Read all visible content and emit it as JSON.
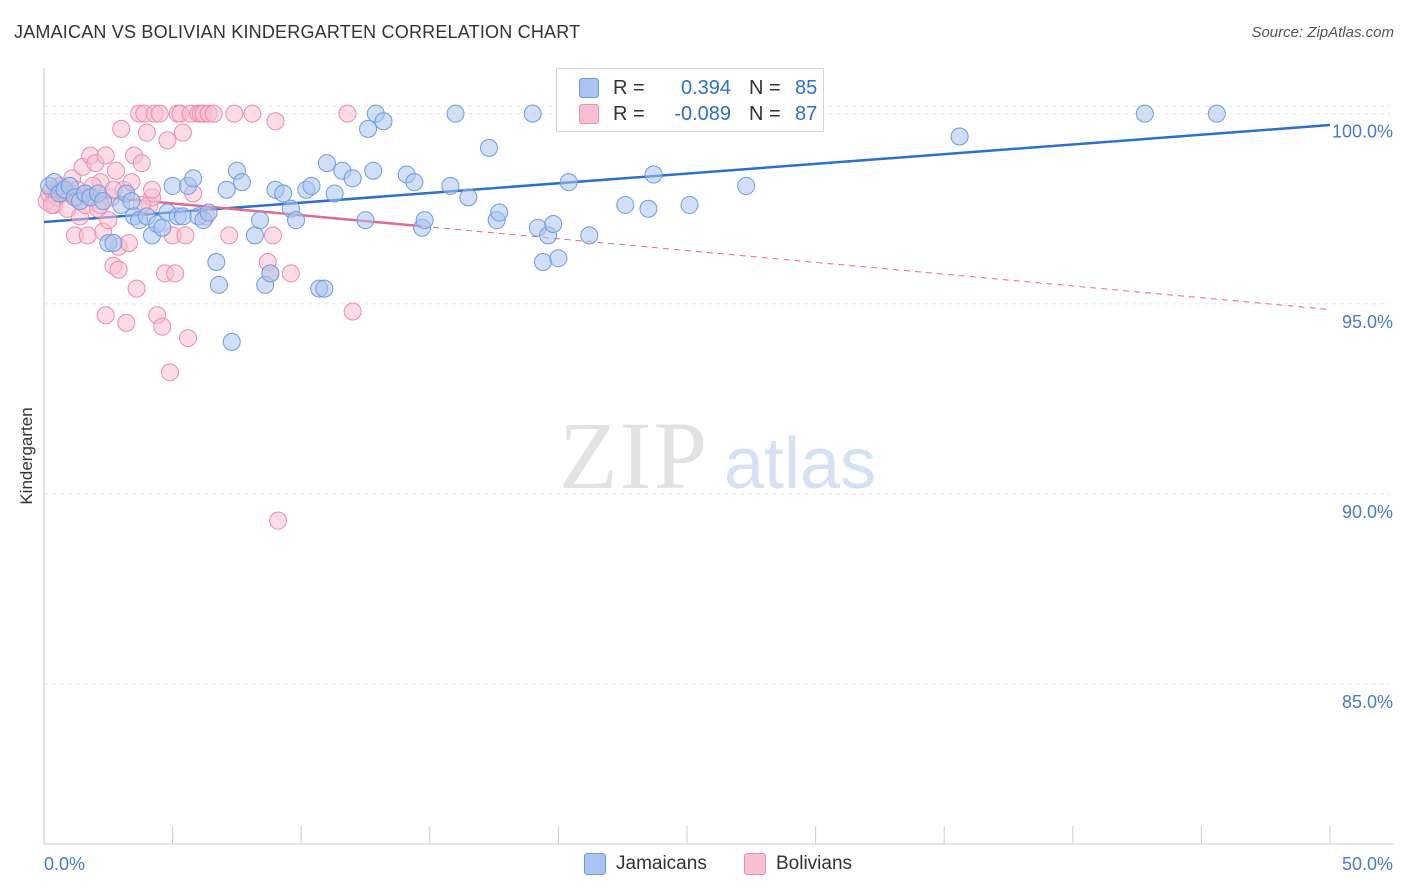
{
  "title": "JAMAICAN VS BOLIVIAN KINDERGARTEN CORRELATION CHART",
  "source": "Source: ZipAtlas.com",
  "watermark": {
    "zip": "ZIP",
    "atlas": "atlas"
  },
  "legend": {
    "rows": [
      {
        "r_label": "R =",
        "r_value": "0.394",
        "n_label": "N =",
        "n_value": "85",
        "color": "#a9c4ee",
        "border": "#6f9be0"
      },
      {
        "r_label": "R =",
        "r_value": "-0.089",
        "n_label": "N =",
        "n_value": "87",
        "color": "#f7bfd1",
        "border": "#eb8dab"
      }
    ],
    "series_names": [
      "Jamaicans",
      "Bolivians"
    ]
  },
  "chart_data": {
    "type": "scatter",
    "title": "JAMAICAN VS BOLIVIAN KINDERGARTEN CORRELATION CHART",
    "xlabel": "",
    "ylabel": "Kindergarten",
    "xlim": [
      0,
      50
    ],
    "ylim": [
      80.8,
      101.2
    ],
    "x_tick_labels": [
      "0.0%",
      "50.0%"
    ],
    "y_ticks": [
      85,
      90,
      95,
      100
    ],
    "y_tick_labels": [
      "85.0%",
      "90.0%",
      "95.0%",
      "100.0%"
    ],
    "grid": true,
    "series": [
      {
        "name": "Jamaicans",
        "color": "#6f9be0",
        "fill": "#a9c4ee",
        "trend": {
          "x0": 0,
          "y0": 97.15,
          "x1": 50,
          "y1": 99.7,
          "style": "solid",
          "color": "#2c6fce"
        },
        "points": [
          [
            0.2,
            98.1
          ],
          [
            0.4,
            98.2
          ],
          [
            0.6,
            97.9
          ],
          [
            0.8,
            98.0
          ],
          [
            1.0,
            98.1
          ],
          [
            1.2,
            97.8
          ],
          [
            1.4,
            97.7
          ],
          [
            1.6,
            97.9
          ],
          [
            1.8,
            97.8
          ],
          [
            2.1,
            97.9
          ],
          [
            2.3,
            97.7
          ],
          [
            2.5,
            96.6
          ],
          [
            2.7,
            96.6
          ],
          [
            3.0,
            97.6
          ],
          [
            3.2,
            97.9
          ],
          [
            3.4,
            97.7
          ],
          [
            3.5,
            97.3
          ],
          [
            3.7,
            97.2
          ],
          [
            4.0,
            97.3
          ],
          [
            4.2,
            96.8
          ],
          [
            4.4,
            97.1
          ],
          [
            4.6,
            97.0
          ],
          [
            4.8,
            97.4
          ],
          [
            5.0,
            98.1
          ],
          [
            5.2,
            97.3
          ],
          [
            5.4,
            97.3
          ],
          [
            5.6,
            98.1
          ],
          [
            5.8,
            98.3
          ],
          [
            6.0,
            97.3
          ],
          [
            6.2,
            97.2
          ],
          [
            6.4,
            97.4
          ],
          [
            6.7,
            96.1
          ],
          [
            6.8,
            95.5
          ],
          [
            7.1,
            98.0
          ],
          [
            7.3,
            94.0
          ],
          [
            7.5,
            98.5
          ],
          [
            7.7,
            98.2
          ],
          [
            8.2,
            96.8
          ],
          [
            8.4,
            97.2
          ],
          [
            8.6,
            95.5
          ],
          [
            8.8,
            95.8
          ],
          [
            9.0,
            98.0
          ],
          [
            9.3,
            97.9
          ],
          [
            9.6,
            97.5
          ],
          [
            9.8,
            97.2
          ],
          [
            10.2,
            98.0
          ],
          [
            10.4,
            98.1
          ],
          [
            10.7,
            95.4
          ],
          [
            10.9,
            95.4
          ],
          [
            11.0,
            98.7
          ],
          [
            11.3,
            97.9
          ],
          [
            11.6,
            98.5
          ],
          [
            12.0,
            98.3
          ],
          [
            12.5,
            97.2
          ],
          [
            12.6,
            99.6
          ],
          [
            12.8,
            98.5
          ],
          [
            12.9,
            100.0
          ],
          [
            13.2,
            99.8
          ],
          [
            14.1,
            98.4
          ],
          [
            14.4,
            98.2
          ],
          [
            14.7,
            97.0
          ],
          [
            14.8,
            97.2
          ],
          [
            15.8,
            98.1
          ],
          [
            16.0,
            100.0
          ],
          [
            16.5,
            97.8
          ],
          [
            17.3,
            99.1
          ],
          [
            17.6,
            97.2
          ],
          [
            17.7,
            97.4
          ],
          [
            19.0,
            100.0
          ],
          [
            19.2,
            97.0
          ],
          [
            19.4,
            96.1
          ],
          [
            19.6,
            96.8
          ],
          [
            19.8,
            97.1
          ],
          [
            20.0,
            96.2
          ],
          [
            20.4,
            98.2
          ],
          [
            21.2,
            96.8
          ],
          [
            22.6,
            97.6
          ],
          [
            23.5,
            97.5
          ],
          [
            23.7,
            98.4
          ],
          [
            25.1,
            97.6
          ],
          [
            26.9,
            100.0
          ],
          [
            27.3,
            98.1
          ],
          [
            35.6,
            99.4
          ],
          [
            42.8,
            100.0
          ],
          [
            45.6,
            100.0
          ]
        ]
      },
      {
        "name": "Bolivians",
        "color": "#eb8dab",
        "fill": "#f7bfd1",
        "trend": {
          "x0": 0,
          "y0": 97.95,
          "x1": 50,
          "y1": 94.85,
          "style": "solid-then-dashed",
          "solid_until_x": 14.7,
          "color": "#e3698f"
        },
        "points": [
          [
            0.1,
            97.7
          ],
          [
            0.2,
            97.9
          ],
          [
            0.3,
            98.0
          ],
          [
            0.4,
            97.6
          ],
          [
            0.5,
            97.8
          ],
          [
            0.6,
            98.1
          ],
          [
            0.7,
            98.0
          ],
          [
            0.8,
            97.9
          ],
          [
            0.9,
            98.0
          ],
          [
            1.0,
            97.9
          ],
          [
            1.1,
            98.3
          ],
          [
            1.2,
            96.8
          ],
          [
            1.3,
            98.0
          ],
          [
            1.4,
            97.3
          ],
          [
            1.5,
            98.6
          ],
          [
            1.6,
            97.6
          ],
          [
            1.7,
            96.8
          ],
          [
            1.8,
            98.9
          ],
          [
            1.9,
            97.8
          ],
          [
            2.0,
            98.7
          ],
          [
            2.1,
            97.5
          ],
          [
            2.2,
            98.2
          ],
          [
            2.3,
            96.9
          ],
          [
            2.4,
            98.9
          ],
          [
            2.5,
            97.2
          ],
          [
            2.6,
            97.8
          ],
          [
            2.7,
            96.0
          ],
          [
            2.8,
            98.5
          ],
          [
            2.9,
            96.5
          ],
          [
            3.0,
            99.6
          ],
          [
            3.1,
            98.0
          ],
          [
            3.2,
            94.5
          ],
          [
            3.3,
            96.6
          ],
          [
            3.4,
            98.2
          ],
          [
            3.5,
            98.9
          ],
          [
            3.6,
            95.4
          ],
          [
            3.7,
            100.0
          ],
          [
            3.8,
            98.7
          ],
          [
            3.9,
            100.0
          ],
          [
            4.0,
            99.5
          ],
          [
            4.1,
            97.6
          ],
          [
            4.2,
            97.8
          ],
          [
            4.3,
            100.0
          ],
          [
            4.4,
            94.7
          ],
          [
            4.5,
            100.0
          ],
          [
            4.6,
            94.4
          ],
          [
            4.7,
            95.8
          ],
          [
            4.8,
            99.3
          ],
          [
            4.9,
            93.2
          ],
          [
            5.0,
            96.8
          ],
          [
            5.1,
            95.8
          ],
          [
            5.2,
            100.0
          ],
          [
            5.3,
            100.0
          ],
          [
            5.4,
            99.5
          ],
          [
            5.5,
            96.8
          ],
          [
            5.6,
            94.1
          ],
          [
            5.7,
            100.0
          ],
          [
            5.8,
            97.9
          ],
          [
            6.0,
            100.0
          ],
          [
            6.1,
            100.0
          ],
          [
            6.2,
            100.0
          ],
          [
            6.3,
            97.3
          ],
          [
            6.4,
            100.0
          ],
          [
            6.6,
            100.0
          ],
          [
            7.2,
            96.8
          ],
          [
            7.4,
            100.0
          ],
          [
            8.1,
            100.0
          ],
          [
            8.7,
            96.1
          ],
          [
            8.8,
            95.8
          ],
          [
            8.9,
            96.8
          ],
          [
            9.1,
            89.3
          ],
          [
            9.0,
            99.8
          ],
          [
            9.6,
            95.8
          ],
          [
            11.8,
            100.0
          ],
          [
            12.0,
            94.8
          ],
          [
            2.4,
            94.7
          ],
          [
            1.6,
            97.9
          ],
          [
            2.2,
            97.6
          ],
          [
            0.9,
            97.5
          ],
          [
            2.9,
            95.9
          ],
          [
            3.8,
            97.6
          ],
          [
            4.2,
            98.0
          ],
          [
            1.3,
            97.8
          ],
          [
            0.6,
            98.1
          ],
          [
            1.9,
            98.1
          ],
          [
            0.3,
            97.6
          ],
          [
            2.7,
            98.0
          ]
        ]
      }
    ]
  }
}
